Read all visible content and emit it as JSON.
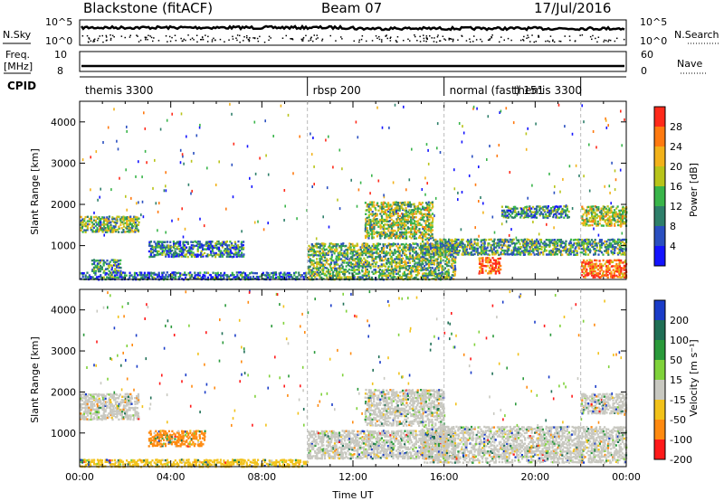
{
  "header": {
    "station": "Blackstone (fitACF)",
    "beam": "Beam 07",
    "date": "17/Jul/2016"
  },
  "noise_panel": {
    "left_label": "N.Sky",
    "right_label": "N.Search",
    "axis_max": "10^5",
    "axis_min": "10^0",
    "right_max": "10^5",
    "right_min": "10^0"
  },
  "freq_panel": {
    "left_label_top": "Freq.",
    "left_label_bottom": "[MHz]",
    "left_max": "10",
    "left_min": "8",
    "right_label": "Nave",
    "right_max": "60",
    "right_min": "0"
  },
  "cpid_panel": {
    "label": "CPID",
    "segments": [
      {
        "name": "themis 3300",
        "start_hour": 0,
        "end_hour": 10
      },
      {
        "name": "rbsp 200",
        "start_hour": 10,
        "end_hour": 16
      },
      {
        "name": "normal (fast) 151",
        "start_hour": 16,
        "end_hour": 22
      },
      {
        "name": "themis 3300",
        "start_hour": 22,
        "end_hour": 24
      }
    ]
  },
  "chart_data": [
    {
      "type": "heatmap",
      "panel": "power",
      "ylabel": "Slant Range [km]",
      "ylim": [
        180,
        4500
      ],
      "yticks": [
        1000,
        2000,
        3000,
        4000
      ],
      "xlim": [
        0,
        24
      ],
      "colorbar_label": "Power [dB]",
      "colorbar_ticks": [
        "4",
        "8",
        "12",
        "16",
        "20",
        "24",
        "28"
      ],
      "colorbar_colors": [
        "#1414ff",
        "#2a4fc0",
        "#2e7f6a",
        "#39b54a",
        "#b8c41a",
        "#f2b21a",
        "#ff7a10",
        "#ff2a1a"
      ],
      "regions": [
        {
          "t0": 0.0,
          "t1": 2.6,
          "r0": 1350,
          "r1": 1750,
          "level": 0.45
        },
        {
          "t0": 0.5,
          "t1": 1.8,
          "r0": 400,
          "r1": 700,
          "level": 0.35
        },
        {
          "t0": 3.0,
          "t1": 7.2,
          "r0": 750,
          "r1": 1150,
          "level": 0.3
        },
        {
          "t0": 0.0,
          "t1": 10.0,
          "r0": 200,
          "r1": 400,
          "level": 0.25
        },
        {
          "t0": 10.0,
          "t1": 16.5,
          "r0": 200,
          "r1": 1100,
          "level": 0.45
        },
        {
          "t0": 12.5,
          "t1": 15.5,
          "r0": 1200,
          "r1": 2100,
          "level": 0.5
        },
        {
          "t0": 17.5,
          "t1": 18.5,
          "r0": 350,
          "r1": 750,
          "level": 0.9
        },
        {
          "t0": 15.0,
          "t1": 24.0,
          "r0": 800,
          "r1": 1200,
          "level": 0.4
        },
        {
          "t0": 22.0,
          "t1": 24.0,
          "r0": 250,
          "r1": 700,
          "level": 0.85
        },
        {
          "t0": 22.0,
          "t1": 24.0,
          "r0": 1500,
          "r1": 2000,
          "level": 0.55
        },
        {
          "t0": 18.5,
          "t1": 21.5,
          "r0": 1700,
          "r1": 2000,
          "level": 0.35
        }
      ]
    },
    {
      "type": "heatmap",
      "panel": "velocity",
      "ylabel": "Slant Range [km]",
      "ylim": [
        180,
        4500
      ],
      "yticks": [
        1000,
        2000,
        3000,
        4000
      ],
      "xlim": [
        0,
        24
      ],
      "xlabel": "Time UT",
      "xticks": [
        "00:00",
        "04:00",
        "08:00",
        "12:00",
        "16:00",
        "20:00",
        "00:00"
      ],
      "colorbar_label": "Velocity [m s⁻¹]",
      "colorbar_ticks": [
        "200",
        "100",
        "50",
        "15",
        "-15",
        "-50",
        "-100",
        "-200"
      ],
      "colorbar_colors": [
        "#1a3cc8",
        "#1f6f55",
        "#2a9a3a",
        "#7fd23a",
        "#c8c8c0",
        "#f2c21a",
        "#ff8a10",
        "#ff1a1a"
      ],
      "regions": [
        {
          "t0": 0.0,
          "t1": 2.6,
          "r0": 1350,
          "r1": 2000,
          "color": 4
        },
        {
          "t0": 10.0,
          "t1": 16.5,
          "r0": 400,
          "r1": 1100,
          "color": 4
        },
        {
          "t0": 12.5,
          "t1": 16.0,
          "r0": 1200,
          "r1": 2100,
          "color": 4
        },
        {
          "t0": 15.0,
          "t1": 24.0,
          "r0": 300,
          "r1": 1200,
          "color": 4
        },
        {
          "t0": 22.0,
          "t1": 24.0,
          "r0": 1500,
          "r1": 2000,
          "color": 4
        },
        {
          "t0": 3.0,
          "t1": 5.5,
          "r0": 700,
          "r1": 1100,
          "color": 6
        },
        {
          "t0": 0.0,
          "t1": 10.0,
          "r0": 200,
          "r1": 400,
          "color": 5
        }
      ]
    }
  ]
}
